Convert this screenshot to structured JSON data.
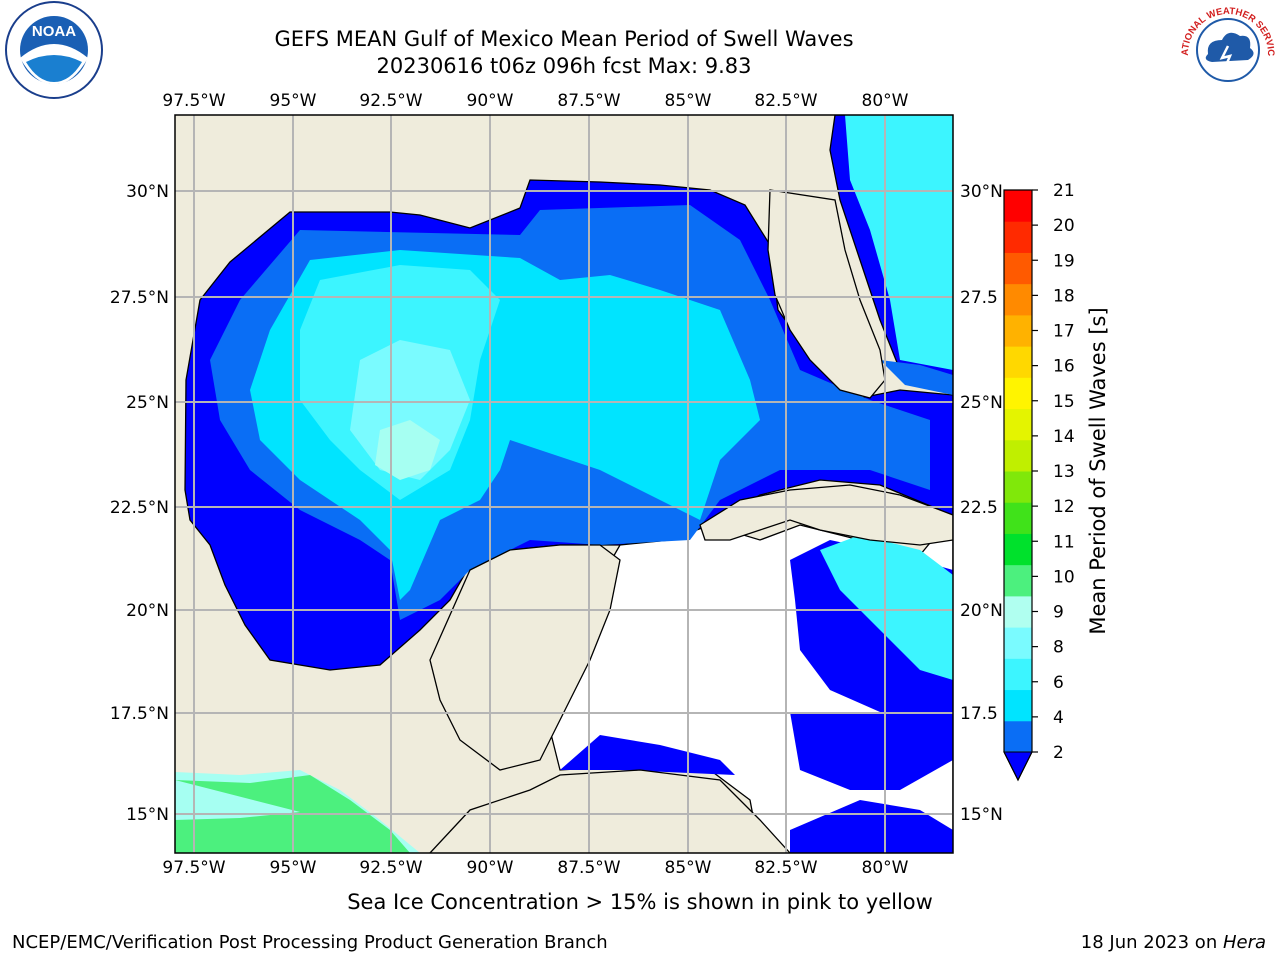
{
  "header": {
    "title_line1": "GEFS MEAN Gulf of Mexico Mean Period of Swell Waves",
    "title_line2": "20230616 t06z 096h fcst   Max: 9.83"
  },
  "logos": {
    "left": {
      "name": "noaa-logo",
      "text": "NOAA"
    },
    "right": {
      "name": "nws-logo",
      "text": "NATIONAL WEATHER SERVICE"
    }
  },
  "map": {
    "lon_ticks": [
      "97.5°W",
      "95°W",
      "92.5°W",
      "90°W",
      "87.5°W",
      "85°W",
      "82.5°W",
      "80°W"
    ],
    "lat_ticks_left": [
      "30°N",
      "27.5°N",
      "25°N",
      "22.5°N",
      "20°N",
      "17.5°N",
      "15°N"
    ],
    "lat_ticks_right": [
      "30°N",
      "27.5",
      "25°N",
      "22.5",
      "20°N",
      "17.5",
      "15°N"
    ],
    "land_color": "#efecdc",
    "no_data_color": "#ffffff",
    "grid_color": "#b5b5b5"
  },
  "colorbar": {
    "label": "Mean Period of Swell Waves [s]",
    "ticks": [
      "21",
      "20",
      "19",
      "18",
      "17",
      "16",
      "15",
      "14",
      "13",
      "12",
      "11",
      "10",
      "9",
      "8",
      "6",
      "4",
      "2"
    ],
    "colors_bottom_to_top": [
      "#0a6ef5",
      "#00e4ff",
      "#3cf5ff",
      "#7afbff",
      "#b0fff0",
      "#4cf07e",
      "#00e12c",
      "#40e21a",
      "#80e80a",
      "#c0ef00",
      "#e4f400",
      "#fff400",
      "#ffd800",
      "#ffb200",
      "#ff8a00",
      "#ff5a00",
      "#ff2a00",
      "#ff0000"
    ],
    "extend_color": "#0000ff"
  },
  "note": "Sea Ice Concentration > 15% is shown in pink to yellow",
  "footer": {
    "left": "NCEP/EMC/Verification Post Processing Product Generation Branch",
    "right_date": "18 Jun 2023 on ",
    "right_host": "Hera"
  }
}
